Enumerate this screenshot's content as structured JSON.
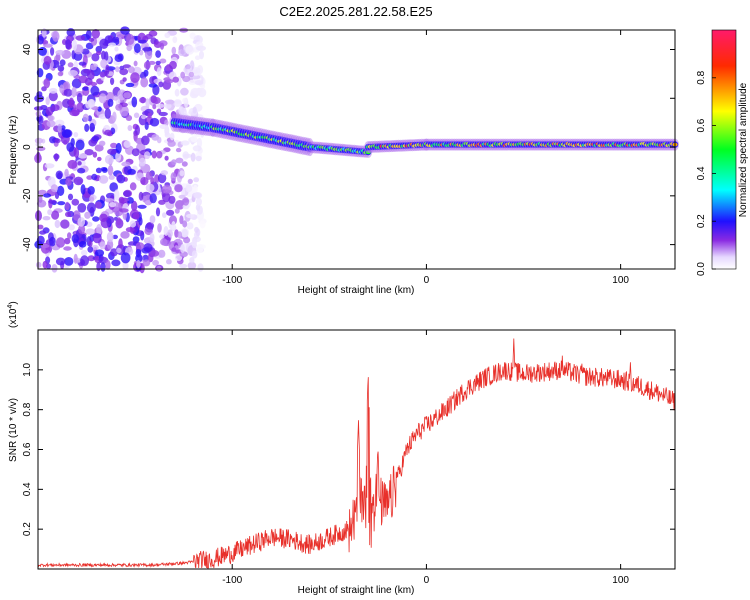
{
  "figure_title": "C2E2.2025.281.22.58.E25",
  "chart_data": [
    {
      "type": "heatmap",
      "title": "C2E2.2025.281.22.58.E25",
      "xlabel": "Height of straight line (km)",
      "ylabel": "Frequency (Hz)",
      "xlim": [
        -200,
        128
      ],
      "ylim": [
        -50,
        48
      ],
      "x_ticks": [
        -100,
        0,
        100
      ],
      "y_ticks": [
        -40,
        -20,
        0,
        20,
        40
      ],
      "colorbar": {
        "label": "Normalized spectral amplitude",
        "range": [
          0.0,
          1.0
        ],
        "ticks": [
          0.0,
          0.2,
          0.4,
          0.6,
          0.8
        ]
      },
      "features": [
        {
          "name": "scattered noise",
          "x_range": [
            -200,
            -115
          ],
          "freq_range": [
            -50,
            48
          ],
          "amplitude": 0.25
        },
        {
          "name": "band segment",
          "x_range": [
            -130,
            -110
          ],
          "freq_center": [
            10,
            8
          ],
          "amplitude": 0.4
        },
        {
          "name": "band segment",
          "x_range": [
            -110,
            -60
          ],
          "freq_center": [
            8,
            0
          ],
          "amplitude": 0.55
        },
        {
          "name": "band segment",
          "x_range": [
            -60,
            -30
          ],
          "freq_center": [
            0,
            -2
          ],
          "amplitude": 0.5
        },
        {
          "name": "band segment",
          "x_range": [
            -30,
            0
          ],
          "freq_center": [
            0,
            1
          ],
          "amplitude": 0.75
        },
        {
          "name": "band segment",
          "x_range": [
            0,
            128
          ],
          "freq_center": [
            1,
            1
          ],
          "amplitude": 0.7
        }
      ]
    },
    {
      "type": "line",
      "xlabel": "Height of straight line (km)",
      "ylabel": "SNR (10 * v/v)",
      "y_multiplier": "(x10",
      "y_multiplier_exp": "4",
      "y_multiplier_close": ")",
      "xlim": [
        -200,
        128
      ],
      "ylim": [
        0,
        1.2
      ],
      "x_ticks": [
        -100,
        0,
        100
      ],
      "y_ticks": [
        0.2,
        0.4,
        0.6,
        0.8,
        1.0
      ],
      "series": [
        {
          "name": "SNR",
          "color": "#e8302a",
          "envelope": {
            "x": [
              -200,
              -140,
              -125,
              -110,
              -100,
              -90,
              -80,
              -70,
              -60,
              -50,
              -40,
              -35,
              -30,
              -25,
              -20,
              -15,
              -10,
              -5,
              0,
              10,
              20,
              30,
              40,
              50,
              60,
              70,
              80,
              90,
              100,
              110,
              120,
              128
            ],
            "y": [
              0.02,
              0.02,
              0.03,
              0.05,
              0.08,
              0.12,
              0.16,
              0.15,
              0.12,
              0.16,
              0.2,
              0.3,
              0.45,
              0.35,
              0.3,
              0.45,
              0.6,
              0.68,
              0.72,
              0.8,
              0.9,
              0.96,
              1.0,
              0.98,
              0.99,
              1.0,
              0.97,
              0.96,
              0.95,
              0.92,
              0.88,
              0.84
            ]
          },
          "noise_amplitude": 0.05,
          "spikes": [
            {
              "x": -35,
              "y": 0.75
            },
            {
              "x": -30,
              "y": 0.98
            },
            {
              "x": -25,
              "y": 0.62
            },
            {
              "x": 45,
              "y": 1.16
            },
            {
              "x": 70,
              "y": 1.08
            },
            {
              "x": 80,
              "y": 1.05
            },
            {
              "x": 105,
              "y": 1.05
            }
          ]
        }
      ]
    }
  ]
}
